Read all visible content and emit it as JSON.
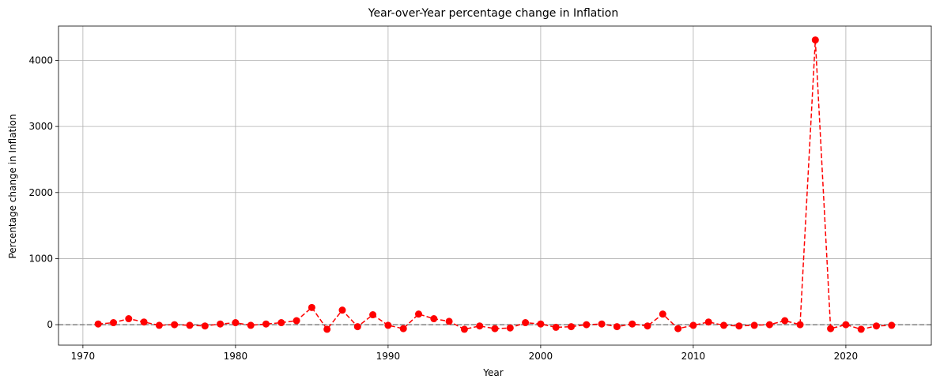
{
  "chart_data": {
    "type": "line",
    "title": "Year-over-Year percentage change in Inflation",
    "xlabel": "Year",
    "ylabel": "Percentage change in Inflation",
    "xlim": [
      1968.4,
      2025.6
    ],
    "ylim": [
      -310,
      4520
    ],
    "xticks": [
      1970,
      1980,
      1990,
      2000,
      2010,
      2020
    ],
    "yticks": [
      0,
      1000,
      2000,
      3000,
      4000
    ],
    "grid": true,
    "reference_line_y": 0,
    "colors": {
      "series": "#ff0000",
      "reference": "#808080",
      "grid": "#b0b0b0"
    },
    "series": [
      {
        "line_style": "dashed",
        "marker": "circle",
        "x": [
          1971,
          1972,
          1973,
          1974,
          1975,
          1976,
          1977,
          1978,
          1979,
          1980,
          1981,
          1982,
          1983,
          1984,
          1985,
          1986,
          1987,
          1988,
          1989,
          1990,
          1991,
          1992,
          1993,
          1994,
          1995,
          1996,
          1997,
          1998,
          1999,
          2000,
          2001,
          2002,
          2003,
          2004,
          2005,
          2006,
          2007,
          2008,
          2009,
          2010,
          2011,
          2012,
          2013,
          2014,
          2015,
          2016,
          2017,
          2018,
          2019,
          2020,
          2021,
          2022,
          2023
        ],
        "y": [
          10,
          30,
          90,
          40,
          -10,
          0,
          -10,
          -20,
          10,
          30,
          -10,
          10,
          30,
          60,
          260,
          -70,
          220,
          -30,
          150,
          -10,
          -60,
          160,
          90,
          50,
          -70,
          -20,
          -60,
          -50,
          30,
          10,
          -40,
          -30,
          0,
          10,
          -30,
          10,
          -20,
          160,
          -60,
          -10,
          40,
          -10,
          -20,
          -10,
          0,
          60,
          0,
          4310,
          -60,
          0,
          -70,
          -20,
          -10
        ]
      }
    ]
  }
}
